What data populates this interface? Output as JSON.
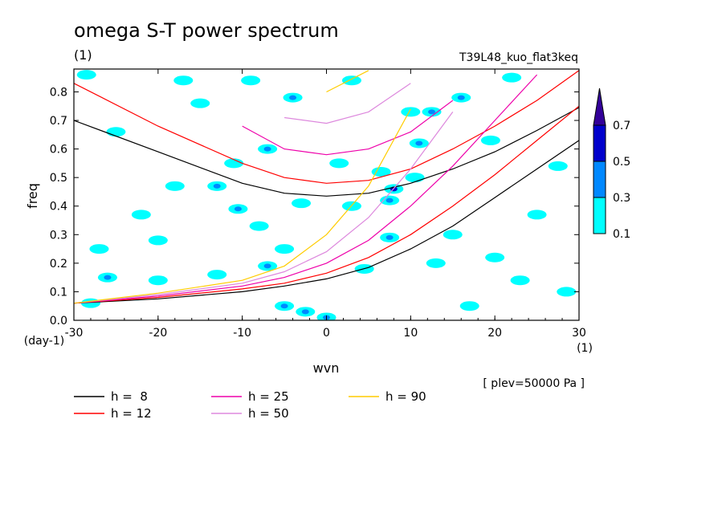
{
  "title": "omega S-T power spectrum",
  "title_units": "(1)",
  "experiment": "T39L48_kuo_flat3keq",
  "level_note": "[ plev=50000 Pa ]",
  "chart_data": {
    "type": "heatmap",
    "xlabel": "wvn",
    "xunits": "(1)",
    "ylabel": "freq",
    "yunits": "(day-1)",
    "xlim": [
      -30,
      30
    ],
    "ylim": [
      0,
      0.88
    ],
    "xticks": [
      {
        "value": -30,
        "label": "-30"
      },
      {
        "value": -20,
        "label": "-20"
      },
      {
        "value": -10,
        "label": "-10"
      },
      {
        "value": 0,
        "label": "0"
      },
      {
        "value": 10,
        "label": "10"
      },
      {
        "value": 20,
        "label": "20"
      },
      {
        "value": 30,
        "label": "30"
      }
    ],
    "yticks": [
      {
        "value": 0.0,
        "label": "0.0"
      },
      {
        "value": 0.1,
        "label": "0.1"
      },
      {
        "value": 0.2,
        "label": "0.2"
      },
      {
        "value": 0.3,
        "label": "0.3"
      },
      {
        "value": 0.4,
        "label": "0.4"
      },
      {
        "value": 0.5,
        "label": "0.5"
      },
      {
        "value": 0.6,
        "label": "0.6"
      },
      {
        "value": 0.7,
        "label": "0.7"
      },
      {
        "value": 0.8,
        "label": "0.8"
      }
    ],
    "contour_levels": [
      0.1,
      0.3,
      0.5,
      0.7
    ],
    "colorbar": [
      {
        "from": 0.1,
        "to": 0.3,
        "color": "#00ffff"
      },
      {
        "from": 0.3,
        "to": 0.5,
        "color": "#0088ff"
      },
      {
        "from": 0.5,
        "to": 0.7,
        "color": "#0000cc"
      },
      {
        "from": 0.7,
        "to": null,
        "color": "#330099"
      }
    ],
    "colorbar_labels": [
      "0.1",
      "0.3",
      "0.5",
      "0.7"
    ],
    "dispersion_curves": [
      {
        "label": "h =  8",
        "h": 8,
        "color": "#000000"
      },
      {
        "label": "h = 12",
        "h": 12,
        "color": "#ff0000"
      },
      {
        "label": "h = 25",
        "h": 25,
        "color": "#ee00aa"
      },
      {
        "label": "h = 50",
        "h": 50,
        "color": "#dd88dd"
      },
      {
        "label": "h = 90",
        "h": 90,
        "color": "#ffcc00"
      }
    ],
    "curve_samples": {
      "x": [
        -30,
        -20,
        -10,
        -5,
        0,
        5,
        10,
        15,
        20,
        25,
        30
      ],
      "series": [
        {
          "h": 8,
          "branch": "inertia-gravity n=1",
          "y": [
            0.7,
            0.59,
            0.48,
            0.445,
            0.435,
            0.445,
            0.48,
            0.53,
            0.59,
            0.665,
            0.745
          ]
        },
        {
          "h": 12,
          "branch": "inertia-gravity n=1",
          "y": [
            0.83,
            0.68,
            0.55,
            0.5,
            0.48,
            0.49,
            0.53,
            0.6,
            0.68,
            0.77,
            0.875
          ]
        },
        {
          "h": 25,
          "branch": "inertia-gravity n=1",
          "y": [
            null,
            null,
            0.68,
            0.6,
            0.58,
            0.6,
            0.66,
            0.77,
            null,
            null,
            null
          ]
        },
        {
          "h": 50,
          "branch": "inertia-gravity n=1",
          "y": [
            null,
            null,
            null,
            0.71,
            0.69,
            0.73,
            0.83,
            null,
            null,
            null,
            null
          ]
        },
        {
          "h": 90,
          "branch": "inertia-gravity n=1",
          "y": [
            null,
            null,
            null,
            null,
            0.8,
            0.875,
            null,
            null,
            null,
            null,
            null
          ]
        },
        {
          "h": 8,
          "branch": "kelvin",
          "y": [
            0.06,
            0.075,
            0.1,
            0.12,
            0.145,
            0.185,
            0.25,
            0.33,
            0.43,
            0.53,
            0.63
          ]
        },
        {
          "h": 12,
          "branch": "kelvin",
          "y": [
            0.06,
            0.08,
            0.11,
            0.13,
            0.165,
            0.22,
            0.3,
            0.4,
            0.51,
            0.63,
            0.75
          ]
        },
        {
          "h": 25,
          "branch": "kelvin",
          "y": [
            0.06,
            0.085,
            0.12,
            0.15,
            0.2,
            0.28,
            0.4,
            0.54,
            0.7,
            0.86,
            null
          ]
        },
        {
          "h": 50,
          "branch": "kelvin",
          "y": [
            0.06,
            0.09,
            0.13,
            0.17,
            0.24,
            0.36,
            0.53,
            0.73,
            null,
            null,
            null
          ]
        },
        {
          "h": 90,
          "branch": "kelvin",
          "y": [
            0.06,
            0.095,
            0.14,
            0.19,
            0.3,
            0.47,
            0.74,
            null,
            null,
            null,
            null
          ]
        }
      ]
    },
    "field_blobs": [
      {
        "x": -28.5,
        "y": 0.86,
        "v": 0.2
      },
      {
        "x": -25,
        "y": 0.66,
        "v": 0.15
      },
      {
        "x": -26,
        "y": 0.15,
        "v": 0.35
      },
      {
        "x": -27,
        "y": 0.25,
        "v": 0.2
      },
      {
        "x": -22,
        "y": 0.37,
        "v": 0.2
      },
      {
        "x": -20,
        "y": 0.14,
        "v": 0.2
      },
      {
        "x": -18,
        "y": 0.47,
        "v": 0.2
      },
      {
        "x": -15,
        "y": 0.76,
        "v": 0.2
      },
      {
        "x": -13,
        "y": 0.47,
        "v": 0.3
      },
      {
        "x": -13,
        "y": 0.16,
        "v": 0.2
      },
      {
        "x": -10.5,
        "y": 0.39,
        "v": 0.35
      },
      {
        "x": -11,
        "y": 0.55,
        "v": 0.2
      },
      {
        "x": -9,
        "y": 0.84,
        "v": 0.2
      },
      {
        "x": -7,
        "y": 0.6,
        "v": 0.35
      },
      {
        "x": -7,
        "y": 0.19,
        "v": 0.35
      },
      {
        "x": -4,
        "y": 0.78,
        "v": 0.35
      },
      {
        "x": -5,
        "y": 0.25,
        "v": 0.2
      },
      {
        "x": -5,
        "y": 0.05,
        "v": 0.45
      },
      {
        "x": -2.5,
        "y": 0.03,
        "v": 0.45
      },
      {
        "x": -3,
        "y": 0.41,
        "v": 0.2
      },
      {
        "x": 0,
        "y": 0.01,
        "v": 0.35
      },
      {
        "x": 1.5,
        "y": 0.55,
        "v": 0.2
      },
      {
        "x": 3,
        "y": 0.4,
        "v": 0.2
      },
      {
        "x": 4.5,
        "y": 0.18,
        "v": 0.2
      },
      {
        "x": 6.5,
        "y": 0.52,
        "v": 0.2
      },
      {
        "x": 7.5,
        "y": 0.29,
        "v": 0.3
      },
      {
        "x": 8,
        "y": 0.46,
        "v": 0.5
      },
      {
        "x": 7.5,
        "y": 0.42,
        "v": 0.4
      },
      {
        "x": 10,
        "y": 0.73,
        "v": 0.2
      },
      {
        "x": 11,
        "y": 0.62,
        "v": 0.35
      },
      {
        "x": 10.5,
        "y": 0.5,
        "v": 0.2
      },
      {
        "x": 12.5,
        "y": 0.73,
        "v": 0.35
      },
      {
        "x": 16,
        "y": 0.78,
        "v": 0.35
      },
      {
        "x": 15,
        "y": 0.3,
        "v": 0.2
      },
      {
        "x": 17,
        "y": 0.05,
        "v": 0.2
      },
      {
        "x": 19.5,
        "y": 0.63,
        "v": 0.2
      },
      {
        "x": 22,
        "y": 0.85,
        "v": 0.2
      },
      {
        "x": 23,
        "y": 0.14,
        "v": 0.2
      },
      {
        "x": 25,
        "y": 0.37,
        "v": 0.2
      },
      {
        "x": 27.5,
        "y": 0.54,
        "v": 0.2
      },
      {
        "x": 28.5,
        "y": 0.1,
        "v": 0.2
      },
      {
        "x": -28,
        "y": 0.06,
        "v": 0.2
      },
      {
        "x": -17,
        "y": 0.84,
        "v": 0.2
      },
      {
        "x": 3,
        "y": 0.84,
        "v": 0.2
      },
      {
        "x": 13,
        "y": 0.2,
        "v": 0.2
      },
      {
        "x": -20,
        "y": 0.28,
        "v": 0.2
      },
      {
        "x": 20,
        "y": 0.22,
        "v": 0.2
      },
      {
        "x": -8,
        "y": 0.33,
        "v": 0.2
      }
    ]
  }
}
